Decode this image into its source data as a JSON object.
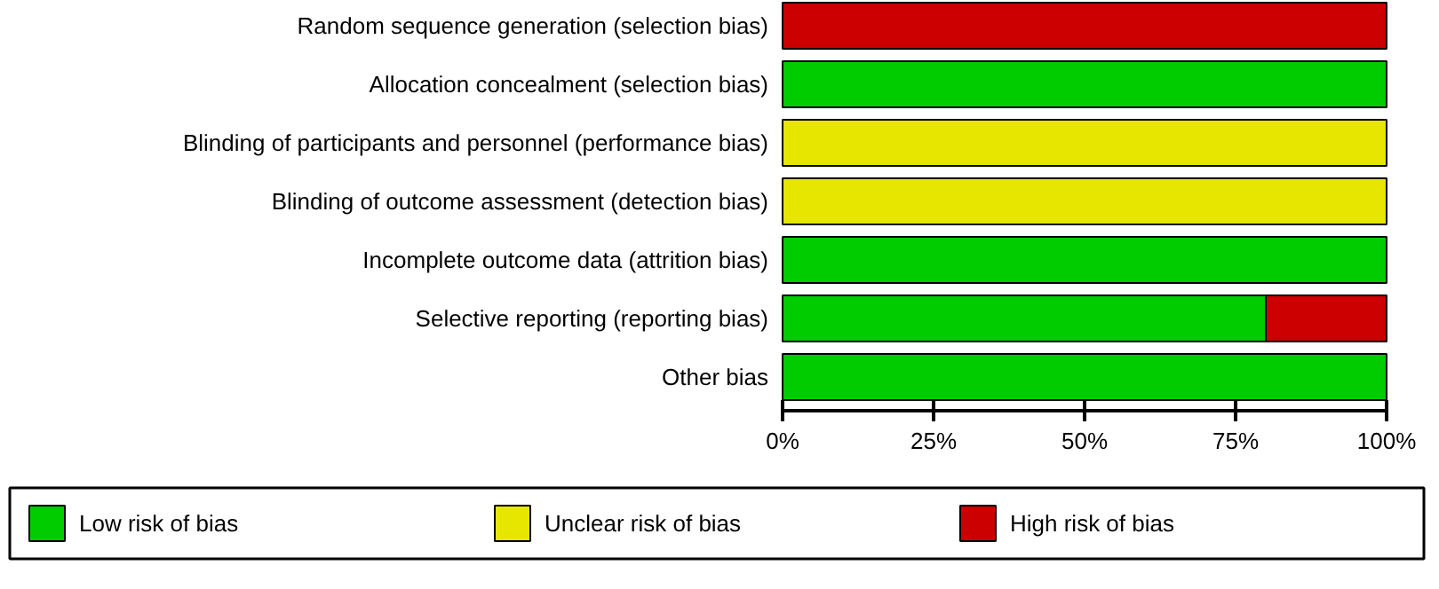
{
  "chart_data": {
    "type": "bar",
    "orientation": "horizontal",
    "stacked": true,
    "categories": [
      "Random sequence generation (selection bias)",
      "Allocation concealment (selection bias)",
      "Blinding of participants and personnel (performance bias)",
      "Blinding of outcome assessment (detection bias)",
      "Incomplete outcome data (attrition bias)",
      "Selective reporting (reporting bias)",
      "Other bias"
    ],
    "series": [
      {
        "name": "Low risk of bias",
        "color": "#00cc00",
        "values": [
          0,
          100,
          0,
          0,
          100,
          80,
          100
        ]
      },
      {
        "name": "Unclear risk of bias",
        "color": "#e6e600",
        "values": [
          0,
          0,
          100,
          100,
          0,
          0,
          0
        ]
      },
      {
        "name": "High risk of bias",
        "color": "#cc0000",
        "values": [
          100,
          0,
          0,
          0,
          0,
          20,
          0
        ]
      }
    ],
    "xlim": [
      0,
      100
    ],
    "xticks": [
      {
        "value": 0,
        "label": "0%"
      },
      {
        "value": 25,
        "label": "25%"
      },
      {
        "value": 50,
        "label": "50%"
      },
      {
        "value": 75,
        "label": "75%"
      },
      {
        "value": 100,
        "label": "100%"
      }
    ],
    "grid": false,
    "legend": "bottom"
  }
}
